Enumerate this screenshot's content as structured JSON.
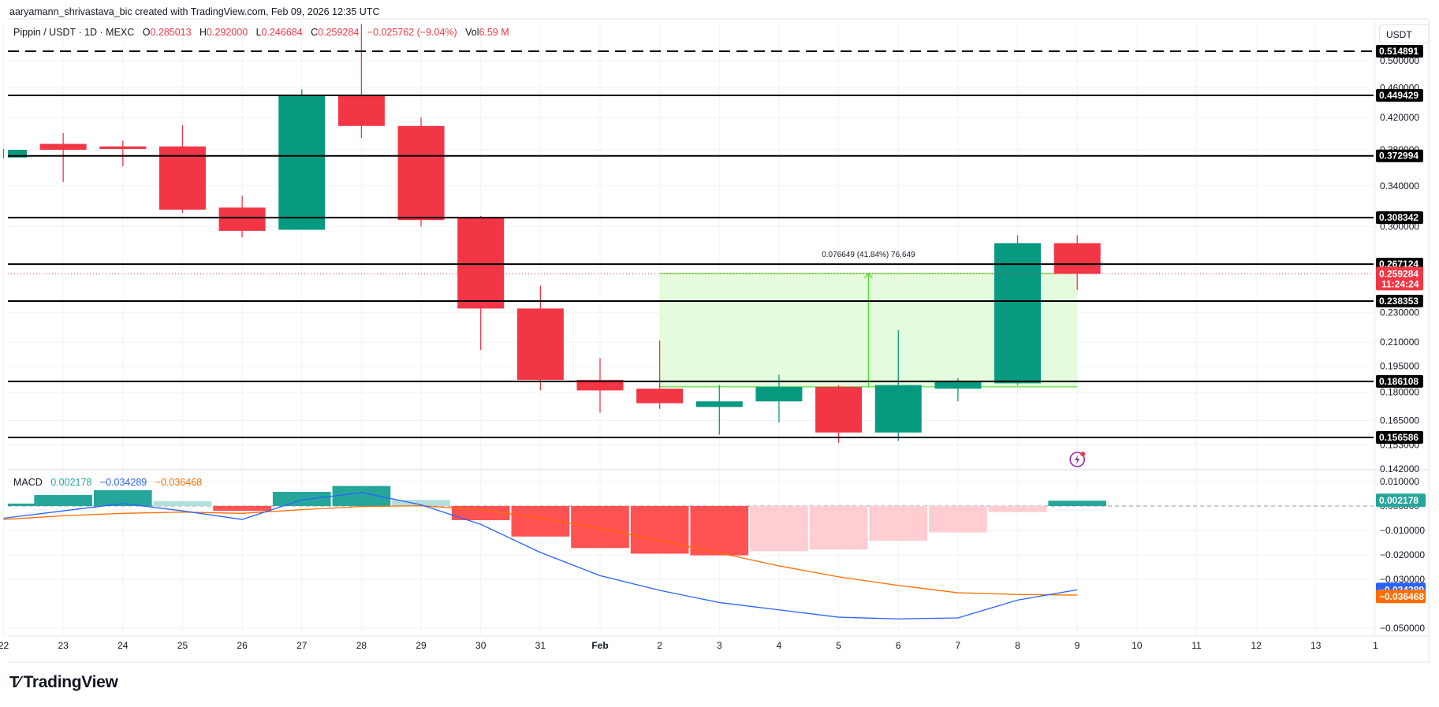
{
  "credit": "aaryamann_shrivastava_bic created with TradingView.com, Feb 09, 2026 12:35 UTC",
  "header": {
    "symbol": "Pippin / USDT · 1D · MEXC",
    "open_label": "O",
    "open": "0.285013",
    "high_label": "H",
    "high": "0.292000",
    "low_label": "L",
    "low": "0.246684",
    "close_label": "C",
    "close": "0.259284",
    "change": "−0.025762 (−9.04%)",
    "vol_label": "Vol",
    "vol": "6.59 M"
  },
  "currency_button": "USDT",
  "macd_legend": {
    "label": "MACD",
    "histogram": "0.002178",
    "macd": "−0.034289",
    "signal": "−0.036468"
  },
  "measure_label": "0.076649 (41.84%) 76,649",
  "branding": "TradingView",
  "colors": {
    "up": "#089981",
    "down": "#f23645",
    "macd_line": "#2962ff",
    "signal_line": "#ff6d00",
    "hist_up_strong": "#26a69a",
    "hist_up_weak": "#b2dfdb",
    "hist_down_strong": "#ff5252",
    "hist_down_weak": "#ffcdd2",
    "measure_fill": "#e3fbdc",
    "measure_line": "#4cdd2e"
  },
  "chart_data": [
    {
      "type": "candlestick",
      "title": "Pippin / USDT · 1D · MEXC",
      "scale": "log",
      "categories": [
        "22",
        "23",
        "24",
        "25",
        "26",
        "27",
        "28",
        "29",
        "30",
        "31",
        "Feb",
        "2",
        "3",
        "4",
        "5",
        "6",
        "7",
        "8",
        "9"
      ],
      "open": [
        0.371,
        0.387,
        0.384,
        0.384,
        0.318,
        0.297,
        0.449,
        0.409,
        0.308,
        0.233,
        0.187,
        0.182,
        0.172,
        0.175,
        0.183,
        0.159,
        0.182,
        0.185,
        0.285013
      ],
      "high": [
        0.381,
        0.4,
        0.391,
        0.41,
        0.33,
        0.458,
        0.56,
        0.42,
        0.31,
        0.25,
        0.2,
        0.211,
        0.184,
        0.19,
        0.184,
        0.218,
        0.188,
        0.292,
        0.292
      ],
      "low": [
        0.37,
        0.344,
        0.361,
        0.313,
        0.29,
        0.297,
        0.394,
        0.3,
        0.205,
        0.181,
        0.169,
        0.171,
        0.158,
        0.164,
        0.154,
        0.155,
        0.175,
        0.184,
        0.246684
      ],
      "close": [
        0.38,
        0.38,
        0.381,
        0.316,
        0.296,
        0.449,
        0.409,
        0.306,
        0.233,
        0.187,
        0.181,
        0.174,
        0.175,
        0.183,
        0.159,
        0.184,
        0.186,
        0.285,
        0.259284
      ],
      "horizontal_levels": [
        0.514891,
        0.449429,
        0.372994,
        0.308342,
        0.267124,
        0.238353,
        0.186108,
        0.156586
      ],
      "current_price": 0.259284,
      "countdown": "11:24:24",
      "price_ticks": [
        "0.500000",
        "0.460000",
        "0.420000",
        "0.380000",
        "0.340000",
        "0.300000",
        "0.230000",
        "0.210000",
        "0.195000",
        "0.180000",
        "0.165000",
        "0.153000",
        "0.142000"
      ],
      "x_ticks": [
        "22",
        "23",
        "24",
        "25",
        "26",
        "27",
        "28",
        "29",
        "30",
        "31",
        "Feb",
        "2",
        "3",
        "4",
        "5",
        "6",
        "7",
        "8",
        "9",
        "10",
        "11",
        "12",
        "13",
        "1"
      ],
      "measure": {
        "from_date": "2",
        "to_date": "9",
        "low": 0.183,
        "high": 0.259649,
        "delta": "0.076649",
        "percent": "41.84%",
        "ticks": "76,649"
      },
      "ylim": [
        0.135,
        0.58
      ]
    },
    {
      "type": "bar+line",
      "title": "MACD",
      "categories": [
        "22",
        "23",
        "24",
        "25",
        "26",
        "27",
        "28",
        "29",
        "30",
        "31",
        "Feb",
        "2",
        "3",
        "4",
        "5",
        "6",
        "7",
        "8",
        "9"
      ],
      "series": [
        {
          "name": "Histogram",
          "values": [
            0.001,
            0.0045,
            0.0065,
            0.002,
            -0.002,
            0.0058,
            0.0082,
            0.0025,
            -0.0058,
            -0.0125,
            -0.0172,
            -0.0195,
            -0.0202,
            -0.0185,
            -0.0178,
            -0.0142,
            -0.0108,
            -0.0025,
            0.002178
          ]
        },
        {
          "name": "MACD",
          "values": [
            -0.005,
            -0.002,
            0.001,
            -0.002,
            -0.0055,
            0.0025,
            0.0055,
            0.0005,
            -0.0075,
            -0.019,
            -0.0285,
            -0.0345,
            -0.0395,
            -0.0425,
            -0.0455,
            -0.0462,
            -0.0458,
            -0.0385,
            -0.034289
          ]
        },
        {
          "name": "Signal",
          "values": [
            -0.0055,
            -0.004,
            -0.003,
            -0.0025,
            -0.003,
            -0.0015,
            -0.0002,
            0.0001,
            -0.0015,
            -0.005,
            -0.0092,
            -0.0142,
            -0.0192,
            -0.0245,
            -0.029,
            -0.0325,
            -0.0355,
            -0.0362,
            -0.036468
          ]
        }
      ],
      "y_ticks": [
        "0.010000",
        "0.000000",
        "−0.010000",
        "−0.020000",
        "−0.030000",
        "−0.050000"
      ],
      "ylim": [
        -0.052,
        0.013
      ]
    }
  ]
}
